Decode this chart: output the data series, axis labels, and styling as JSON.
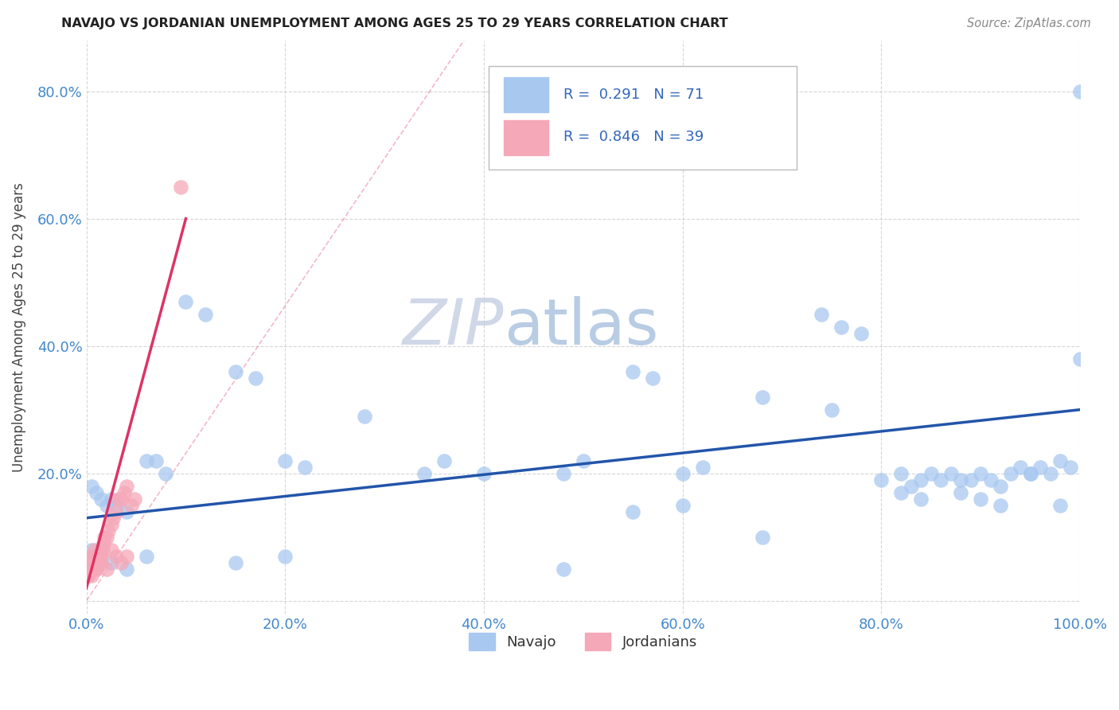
{
  "title": "NAVAJO VS JORDANIAN UNEMPLOYMENT AMONG AGES 25 TO 29 YEARS CORRELATION CHART",
  "source": "Source: ZipAtlas.com",
  "ylabel": "Unemployment Among Ages 25 to 29 years",
  "xlim": [
    0.0,
    1.0
  ],
  "ylim": [
    -0.02,
    0.88
  ],
  "xticks": [
    0.0,
    0.2,
    0.4,
    0.6,
    0.8,
    1.0
  ],
  "yticks": [
    0.0,
    0.2,
    0.4,
    0.6,
    0.8
  ],
  "xticklabels": [
    "0.0%",
    "20.0%",
    "40.0%",
    "60.0%",
    "80.0%",
    "100.0%"
  ],
  "yticklabels": [
    "",
    "20.0%",
    "40.0%",
    "60.0%",
    "80.0%"
  ],
  "navajo_color": "#a8c8f0",
  "jordanian_color": "#f5a8b8",
  "navajo_line_color": "#2255aa",
  "jordanian_line_color": "#dd3366",
  "r_navajo": 0.291,
  "n_navajo": 71,
  "r_jordanian": 0.846,
  "n_jordanian": 39,
  "navajo_scatter_x": [
    0.005,
    0.01,
    0.015,
    0.02,
    0.025,
    0.03,
    0.04,
    0.06,
    0.07,
    0.08,
    0.1,
    0.12,
    0.15,
    0.17,
    0.2,
    0.22,
    0.28,
    0.34,
    0.36,
    0.4,
    0.48,
    0.5,
    0.55,
    0.57,
    0.6,
    0.62,
    0.68,
    0.74,
    0.76,
    0.78,
    0.8,
    0.82,
    0.83,
    0.84,
    0.85,
    0.86,
    0.87,
    0.88,
    0.89,
    0.9,
    0.91,
    0.92,
    0.93,
    0.94,
    0.95,
    0.96,
    0.97,
    0.98,
    0.99,
    1.0,
    0.005,
    0.01,
    0.025,
    0.04,
    0.06,
    0.15,
    0.2,
    0.48,
    0.55,
    0.6,
    0.68,
    0.75,
    0.82,
    0.84,
    0.88,
    0.9,
    0.92,
    0.95,
    0.98,
    1.0,
    0.5
  ],
  "navajo_scatter_y": [
    0.18,
    0.17,
    0.16,
    0.15,
    0.16,
    0.15,
    0.14,
    0.22,
    0.22,
    0.2,
    0.47,
    0.45,
    0.36,
    0.35,
    0.22,
    0.21,
    0.29,
    0.2,
    0.22,
    0.2,
    0.2,
    0.22,
    0.36,
    0.35,
    0.2,
    0.21,
    0.32,
    0.45,
    0.43,
    0.42,
    0.19,
    0.2,
    0.18,
    0.19,
    0.2,
    0.19,
    0.2,
    0.19,
    0.19,
    0.2,
    0.19,
    0.18,
    0.2,
    0.21,
    0.2,
    0.21,
    0.2,
    0.22,
    0.21,
    0.38,
    0.08,
    0.07,
    0.06,
    0.05,
    0.07,
    0.06,
    0.07,
    0.05,
    0.14,
    0.15,
    0.1,
    0.3,
    0.17,
    0.16,
    0.17,
    0.16,
    0.15,
    0.2,
    0.15,
    0.8,
    0.7
  ],
  "jordanian_scatter_x": [
    0.001,
    0.002,
    0.003,
    0.004,
    0.005,
    0.006,
    0.007,
    0.008,
    0.009,
    0.01,
    0.011,
    0.012,
    0.013,
    0.014,
    0.015,
    0.016,
    0.017,
    0.018,
    0.02,
    0.022,
    0.025,
    0.027,
    0.03,
    0.032,
    0.035,
    0.038,
    0.04,
    0.045,
    0.048,
    0.002,
    0.005,
    0.008,
    0.01,
    0.015,
    0.02,
    0.025,
    0.03,
    0.035,
    0.04
  ],
  "jordanian_scatter_y": [
    0.04,
    0.05,
    0.05,
    0.06,
    0.06,
    0.07,
    0.07,
    0.08,
    0.05,
    0.06,
    0.07,
    0.06,
    0.07,
    0.08,
    0.07,
    0.08,
    0.09,
    0.1,
    0.1,
    0.11,
    0.12,
    0.13,
    0.14,
    0.16,
    0.16,
    0.17,
    0.18,
    0.15,
    0.16,
    0.04,
    0.04,
    0.05,
    0.05,
    0.06,
    0.05,
    0.08,
    0.07,
    0.06,
    0.07
  ],
  "jordanian_outlier_x": [
    0.095
  ],
  "jordanian_outlier_y": [
    0.65
  ],
  "navajo_line_x": [
    0.0,
    1.0
  ],
  "navajo_line_y": [
    0.13,
    0.3
  ],
  "jordanian_line_x": [
    0.0,
    0.1
  ],
  "jordanian_line_y": [
    0.02,
    0.6
  ],
  "jordanian_dashed_line_x": [
    0.0,
    0.38
  ],
  "jordanian_dashed_line_y": [
    0.0,
    0.88
  ]
}
